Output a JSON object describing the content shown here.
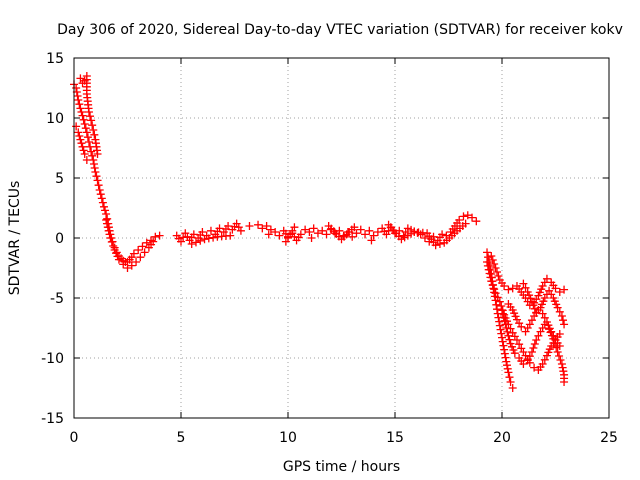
{
  "chart_data": {
    "type": "scatter",
    "title": "Day 306 of 2020, Sidereal Day-to-day VTEC variation (SDTVAR) for receiver kokv",
    "xlabel": "GPS time / hours",
    "ylabel": "SDTVAR / TECUs",
    "xlim": [
      0,
      25
    ],
    "ylim": [
      -15,
      15
    ],
    "x_ticks": [
      0,
      5,
      10,
      15,
      20,
      25
    ],
    "y_ticks": [
      -15,
      -10,
      -5,
      0,
      5,
      10,
      15
    ],
    "x_tick_labels": [
      "0",
      "5",
      "10",
      "15",
      "20",
      "25"
    ],
    "y_tick_labels": [
      "-15",
      "-10",
      "-5",
      "0",
      "5",
      "10",
      "15"
    ],
    "grid": true,
    "marker": "+",
    "color": "#ff0000",
    "segments": [
      {
        "name": "initial-decay",
        "points": [
          [
            0.0,
            12.8
          ],
          [
            0.1,
            12.5
          ],
          [
            0.2,
            11.5
          ],
          [
            0.3,
            10.8
          ],
          [
            0.4,
            10.2
          ],
          [
            0.5,
            9.5
          ],
          [
            0.6,
            8.8
          ],
          [
            0.7,
            8.0
          ],
          [
            0.8,
            7.2
          ],
          [
            0.9,
            6.5
          ],
          [
            1.0,
            5.5
          ],
          [
            1.1,
            4.8
          ],
          [
            1.2,
            4.0
          ],
          [
            1.3,
            3.3
          ],
          [
            1.4,
            2.6
          ],
          [
            1.5,
            2.0
          ],
          [
            1.6,
            1.2
          ],
          [
            1.7,
            0.3
          ],
          [
            1.8,
            -0.3
          ],
          [
            1.9,
            -0.8
          ],
          [
            2.0,
            -1.2
          ],
          [
            2.1,
            -1.5
          ],
          [
            2.2,
            -1.7
          ],
          [
            2.3,
            -1.9
          ],
          [
            2.4,
            -2.0
          ],
          [
            2.5,
            -2.0
          ],
          [
            2.6,
            -1.8
          ],
          [
            2.7,
            -1.6
          ],
          [
            2.8,
            -1.3
          ],
          [
            3.0,
            -1.0
          ],
          [
            3.2,
            -0.7
          ],
          [
            3.4,
            -0.4
          ],
          [
            3.6,
            -0.2
          ],
          [
            3.8,
            0.1
          ],
          [
            4.0,
            0.2
          ]
        ]
      },
      {
        "name": "initial-upper",
        "points": [
          [
            0.3,
            13.3
          ],
          [
            0.4,
            12.9
          ],
          [
            0.5,
            13.1
          ],
          [
            0.6,
            13.5
          ],
          [
            0.6,
            12.0
          ],
          [
            0.7,
            10.5
          ],
          [
            0.8,
            9.8
          ],
          [
            0.9,
            9.0
          ],
          [
            1.0,
            8.2
          ],
          [
            1.1,
            7.0
          ]
        ]
      },
      {
        "name": "initial-lower",
        "points": [
          [
            0.1,
            9.3
          ],
          [
            0.2,
            8.8
          ],
          [
            0.3,
            8.2
          ],
          [
            0.4,
            7.6
          ],
          [
            0.5,
            7.0
          ],
          [
            0.6,
            6.5
          ],
          [
            1.5,
            1.5
          ],
          [
            1.7,
            0.0
          ],
          [
            1.9,
            -1.0
          ],
          [
            2.1,
            -1.8
          ],
          [
            2.3,
            -2.2
          ],
          [
            2.5,
            -2.5
          ],
          [
            2.7,
            -2.3
          ],
          [
            2.9,
            -2.0
          ],
          [
            3.1,
            -1.6
          ],
          [
            3.3,
            -1.2
          ],
          [
            3.5,
            -0.8
          ],
          [
            3.7,
            -0.3
          ]
        ]
      },
      {
        "name": "quiet-period",
        "points": [
          [
            4.8,
            0.2
          ],
          [
            5.0,
            -0.3
          ],
          [
            5.2,
            0.4
          ],
          [
            5.4,
            -0.2
          ],
          [
            5.6,
            0.3
          ],
          [
            5.8,
            0.0
          ],
          [
            6.0,
            0.5
          ],
          [
            6.2,
            0.2
          ],
          [
            6.4,
            0.6
          ],
          [
            6.6,
            0.3
          ],
          [
            6.8,
            0.8
          ],
          [
            7.0,
            0.5
          ],
          [
            7.2,
            1.0
          ],
          [
            7.4,
            0.7
          ],
          [
            7.6,
            1.2
          ],
          [
            7.8,
            0.6
          ],
          [
            8.6,
            1.1
          ],
          [
            8.8,
            0.8
          ],
          [
            9.0,
            1.0
          ],
          [
            9.2,
            0.7
          ],
          [
            9.4,
            0.5
          ],
          [
            9.6,
            0.2
          ],
          [
            9.8,
            0.6
          ],
          [
            10.0,
            0.1
          ],
          [
            10.2,
            0.4
          ],
          [
            10.4,
            -0.2
          ],
          [
            10.6,
            0.3
          ],
          [
            10.8,
            0.7
          ],
          [
            11.0,
            0.5
          ],
          [
            11.2,
            0.8
          ],
          [
            11.4,
            0.4
          ],
          [
            11.6,
            0.6
          ],
          [
            11.8,
            0.3
          ],
          [
            12.0,
            0.7
          ],
          [
            12.2,
            0.4
          ],
          [
            12.4,
            0.6
          ],
          [
            12.6,
            0.2
          ],
          [
            12.8,
            0.5
          ],
          [
            13.0,
            0.1
          ],
          [
            13.2,
            0.4
          ],
          [
            13.4,
            0.7
          ],
          [
            13.6,
            0.3
          ],
          [
            13.8,
            0.6
          ],
          [
            14.0,
            0.2
          ],
          [
            14.2,
            0.5
          ],
          [
            14.4,
            0.8
          ],
          [
            14.6,
            0.3
          ],
          [
            14.8,
            0.9
          ],
          [
            15.0,
            0.4
          ],
          [
            15.2,
            0.6
          ],
          [
            15.4,
            0.2
          ],
          [
            15.6,
            0.8
          ],
          [
            16.2,
            0.3
          ],
          [
            16.4,
            0.0
          ],
          [
            16.6,
            -0.3
          ],
          [
            16.8,
            0.1
          ],
          [
            17.0,
            -0.2
          ],
          [
            17.2,
            0.3
          ],
          [
            17.4,
            0.2
          ],
          [
            17.6,
            0.5
          ],
          [
            17.8,
            1.0
          ],
          [
            18.0,
            1.5
          ],
          [
            18.2,
            1.8
          ],
          [
            18.4,
            1.9
          ],
          [
            18.6,
            1.7
          ],
          [
            18.8,
            1.4
          ]
        ]
      },
      {
        "name": "quiet-period-scatter",
        "points": [
          [
            5.5,
            -0.5
          ],
          [
            6.1,
            -0.1
          ],
          [
            6.7,
            0.1
          ],
          [
            7.3,
            0.2
          ],
          [
            8.2,
            1.0
          ],
          [
            9.1,
            0.3
          ],
          [
            9.9,
            -0.3
          ],
          [
            10.3,
            0.9
          ],
          [
            11.1,
            0.0
          ],
          [
            11.9,
            1.0
          ],
          [
            12.5,
            -0.1
          ],
          [
            13.1,
            0.9
          ],
          [
            13.9,
            -0.2
          ],
          [
            14.7,
            1.1
          ],
          [
            15.3,
            -0.1
          ],
          [
            15.9,
            0.5
          ],
          [
            16.5,
            0.4
          ],
          [
            16.9,
            -0.6
          ],
          [
            17.3,
            -0.4
          ],
          [
            17.9,
            0.6
          ],
          [
            18.3,
            1.2
          ]
        ]
      },
      {
        "name": "disturbed-a",
        "points": [
          [
            19.3,
            -1.2
          ],
          [
            19.4,
            -2.0
          ],
          [
            19.5,
            -3.0
          ],
          [
            19.6,
            -4.2
          ],
          [
            19.7,
            -5.2
          ],
          [
            19.8,
            -6.3
          ],
          [
            19.9,
            -7.3
          ],
          [
            20.0,
            -8.3
          ],
          [
            20.1,
            -9.3
          ],
          [
            20.2,
            -10.3
          ],
          [
            20.3,
            -11.2
          ],
          [
            20.4,
            -12.0
          ],
          [
            20.5,
            -12.5
          ]
        ]
      },
      {
        "name": "disturbed-b",
        "points": [
          [
            19.3,
            -2.0
          ],
          [
            19.5,
            -3.6
          ],
          [
            19.7,
            -4.6
          ],
          [
            19.9,
            -5.3
          ],
          [
            20.1,
            -6.4
          ],
          [
            20.3,
            -7.2
          ],
          [
            20.5,
            -7.9
          ],
          [
            20.7,
            -8.5
          ],
          [
            20.9,
            -9.2
          ],
          [
            21.1,
            -9.8
          ],
          [
            21.3,
            -10.4
          ],
          [
            21.5,
            -10.8
          ],
          [
            21.7,
            -11.0
          ],
          [
            21.9,
            -10.5
          ],
          [
            22.1,
            -9.8
          ],
          [
            22.3,
            -9.0
          ],
          [
            22.5,
            -8.5
          ],
          [
            22.7,
            -8.0
          ]
        ]
      },
      {
        "name": "disturbed-c",
        "points": [
          [
            19.5,
            -1.5
          ],
          [
            19.7,
            -2.5
          ],
          [
            19.9,
            -3.5
          ],
          [
            20.1,
            -4.0
          ],
          [
            20.3,
            -4.3
          ],
          [
            20.5,
            -4.2
          ],
          [
            20.7,
            -4.0
          ],
          [
            20.9,
            -4.5
          ],
          [
            21.1,
            -5.0
          ],
          [
            21.3,
            -5.6
          ],
          [
            21.5,
            -5.4
          ],
          [
            21.7,
            -4.8
          ],
          [
            21.9,
            -4.0
          ],
          [
            22.1,
            -3.4
          ],
          [
            22.3,
            -3.7
          ],
          [
            22.5,
            -4.2
          ],
          [
            22.7,
            -4.5
          ],
          [
            22.9,
            -4.3
          ]
        ]
      },
      {
        "name": "disturbed-d",
        "points": [
          [
            20.0,
            -6.0
          ],
          [
            20.2,
            -7.5
          ],
          [
            20.4,
            -8.8
          ],
          [
            20.6,
            -9.6
          ],
          [
            20.8,
            -10.0
          ],
          [
            21.0,
            -10.5
          ],
          [
            21.2,
            -10.2
          ],
          [
            21.4,
            -9.5
          ],
          [
            21.6,
            -8.5
          ],
          [
            21.8,
            -7.8
          ],
          [
            22.0,
            -7.2
          ],
          [
            22.2,
            -7.6
          ],
          [
            22.4,
            -8.4
          ],
          [
            22.6,
            -9.5
          ],
          [
            22.8,
            -10.5
          ],
          [
            22.9,
            -11.4
          ],
          [
            22.9,
            -12.0
          ]
        ]
      },
      {
        "name": "disturbed-e",
        "points": [
          [
            20.3,
            -5.5
          ],
          [
            20.5,
            -6.0
          ],
          [
            20.7,
            -6.8
          ],
          [
            20.9,
            -7.4
          ],
          [
            21.1,
            -7.8
          ],
          [
            21.3,
            -7.2
          ],
          [
            21.5,
            -6.5
          ],
          [
            21.7,
            -6.0
          ],
          [
            21.9,
            -6.3
          ],
          [
            22.1,
            -7.0
          ],
          [
            22.3,
            -7.8
          ],
          [
            22.5,
            -8.5
          ],
          [
            22.7,
            -9.0
          ]
        ]
      },
      {
        "name": "disturbed-f",
        "points": [
          [
            21.0,
            -3.8
          ],
          [
            21.2,
            -4.5
          ],
          [
            21.4,
            -5.3
          ],
          [
            21.6,
            -6.2
          ],
          [
            21.8,
            -5.8
          ],
          [
            22.0,
            -5.0
          ],
          [
            22.2,
            -4.4
          ],
          [
            22.4,
            -5.0
          ],
          [
            22.6,
            -5.8
          ],
          [
            22.8,
            -6.5
          ],
          [
            22.9,
            -7.2
          ]
        ]
      }
    ]
  }
}
